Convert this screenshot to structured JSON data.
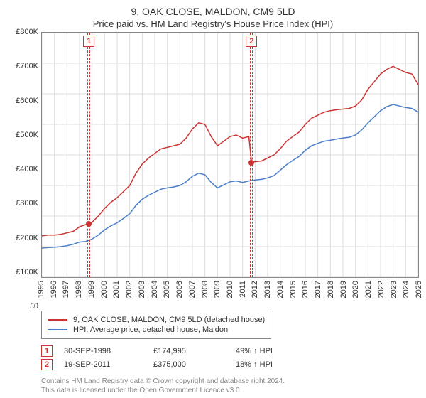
{
  "title": "9, OAK CLOSE, MALDON, CM9 5LD",
  "subtitle": "Price paid vs. HM Land Registry's House Price Index (HPI)",
  "chart": {
    "type": "line",
    "background_color": "#ffffff",
    "border_color": "#888888",
    "grid_color": "#dddddd",
    "text_color": "#333333",
    "label_fontsize": 11,
    "x": {
      "min": 1995,
      "max": 2025,
      "step": 1,
      "ticks": [
        1995,
        1996,
        1997,
        1998,
        1999,
        2000,
        2001,
        2002,
        2003,
        2004,
        2005,
        2006,
        2007,
        2008,
        2009,
        2010,
        2011,
        2012,
        2013,
        2014,
        2015,
        2016,
        2017,
        2018,
        2019,
        2020,
        2021,
        2022,
        2023,
        2024,
        2025
      ]
    },
    "y": {
      "min": 0,
      "max": 800000,
      "step": 100000,
      "ticks": [
        0,
        100000,
        200000,
        300000,
        400000,
        500000,
        600000,
        700000,
        800000
      ],
      "labels": [
        "£0",
        "£100K",
        "£200K",
        "£300K",
        "£400K",
        "£500K",
        "£600K",
        "£700K",
        "£800K"
      ]
    },
    "series": [
      {
        "id": "price_paid",
        "label": "9, OAK CLOSE, MALDON, CM9 5LD (detached house)",
        "color": "#cc3333",
        "line_width": 1.5,
        "points": [
          [
            1995.0,
            135000
          ],
          [
            1995.5,
            138000
          ],
          [
            1996.0,
            138000
          ],
          [
            1996.5,
            140000
          ],
          [
            1997.0,
            145000
          ],
          [
            1997.5,
            150000
          ],
          [
            1998.0,
            165000
          ],
          [
            1998.5,
            172000
          ],
          [
            1998.75,
            174995
          ],
          [
            1999.0,
            180000
          ],
          [
            1999.5,
            200000
          ],
          [
            2000.0,
            225000
          ],
          [
            2000.5,
            245000
          ],
          [
            2001.0,
            260000
          ],
          [
            2001.5,
            280000
          ],
          [
            2002.0,
            300000
          ],
          [
            2002.5,
            340000
          ],
          [
            2003.0,
            370000
          ],
          [
            2003.5,
            390000
          ],
          [
            2004.0,
            405000
          ],
          [
            2004.5,
            420000
          ],
          [
            2005.0,
            425000
          ],
          [
            2005.5,
            430000
          ],
          [
            2006.0,
            435000
          ],
          [
            2006.5,
            455000
          ],
          [
            2007.0,
            485000
          ],
          [
            2007.5,
            505000
          ],
          [
            2008.0,
            500000
          ],
          [
            2008.5,
            460000
          ],
          [
            2009.0,
            430000
          ],
          [
            2009.5,
            445000
          ],
          [
            2010.0,
            460000
          ],
          [
            2010.5,
            465000
          ],
          [
            2011.0,
            455000
          ],
          [
            2011.5,
            460000
          ],
          [
            2011.72,
            375000
          ],
          [
            2012.0,
            378000
          ],
          [
            2012.5,
            380000
          ],
          [
            2013.0,
            390000
          ],
          [
            2013.5,
            400000
          ],
          [
            2014.0,
            420000
          ],
          [
            2014.5,
            445000
          ],
          [
            2015.0,
            460000
          ],
          [
            2015.5,
            475000
          ],
          [
            2016.0,
            500000
          ],
          [
            2016.5,
            520000
          ],
          [
            2017.0,
            530000
          ],
          [
            2017.5,
            540000
          ],
          [
            2018.0,
            545000
          ],
          [
            2018.5,
            548000
          ],
          [
            2019.0,
            550000
          ],
          [
            2019.5,
            552000
          ],
          [
            2020.0,
            560000
          ],
          [
            2020.5,
            580000
          ],
          [
            2021.0,
            615000
          ],
          [
            2021.5,
            640000
          ],
          [
            2022.0,
            665000
          ],
          [
            2022.5,
            680000
          ],
          [
            2023.0,
            690000
          ],
          [
            2023.5,
            680000
          ],
          [
            2024.0,
            670000
          ],
          [
            2024.5,
            665000
          ],
          [
            2025.0,
            630000
          ]
        ]
      },
      {
        "id": "hpi",
        "label": "HPI: Average price, detached house, Maldon",
        "color": "#4a7ec8",
        "line_width": 1.5,
        "points": [
          [
            1995.0,
            95000
          ],
          [
            1995.5,
            97000
          ],
          [
            1996.0,
            98000
          ],
          [
            1996.5,
            100000
          ],
          [
            1997.0,
            103000
          ],
          [
            1997.5,
            108000
          ],
          [
            1998.0,
            115000
          ],
          [
            1998.5,
            117000
          ],
          [
            1999.0,
            125000
          ],
          [
            1999.5,
            138000
          ],
          [
            2000.0,
            155000
          ],
          [
            2000.5,
            168000
          ],
          [
            2001.0,
            178000
          ],
          [
            2001.5,
            192000
          ],
          [
            2002.0,
            208000
          ],
          [
            2002.5,
            235000
          ],
          [
            2003.0,
            255000
          ],
          [
            2003.5,
            268000
          ],
          [
            2004.0,
            278000
          ],
          [
            2004.5,
            288000
          ],
          [
            2005.0,
            292000
          ],
          [
            2005.5,
            295000
          ],
          [
            2006.0,
            300000
          ],
          [
            2006.5,
            312000
          ],
          [
            2007.0,
            330000
          ],
          [
            2007.5,
            340000
          ],
          [
            2008.0,
            335000
          ],
          [
            2008.5,
            310000
          ],
          [
            2009.0,
            292000
          ],
          [
            2009.5,
            302000
          ],
          [
            2010.0,
            312000
          ],
          [
            2010.5,
            315000
          ],
          [
            2011.0,
            310000
          ],
          [
            2011.5,
            315000
          ],
          [
            2012.0,
            318000
          ],
          [
            2012.5,
            320000
          ],
          [
            2013.0,
            325000
          ],
          [
            2013.5,
            332000
          ],
          [
            2014.0,
            350000
          ],
          [
            2014.5,
            368000
          ],
          [
            2015.0,
            382000
          ],
          [
            2015.5,
            395000
          ],
          [
            2016.0,
            415000
          ],
          [
            2016.5,
            430000
          ],
          [
            2017.0,
            438000
          ],
          [
            2017.5,
            445000
          ],
          [
            2018.0,
            448000
          ],
          [
            2018.5,
            452000
          ],
          [
            2019.0,
            455000
          ],
          [
            2019.5,
            458000
          ],
          [
            2020.0,
            465000
          ],
          [
            2020.5,
            482000
          ],
          [
            2021.0,
            505000
          ],
          [
            2021.5,
            525000
          ],
          [
            2022.0,
            545000
          ],
          [
            2022.5,
            558000
          ],
          [
            2023.0,
            565000
          ],
          [
            2023.5,
            560000
          ],
          [
            2024.0,
            555000
          ],
          [
            2024.5,
            552000
          ],
          [
            2025.0,
            540000
          ]
        ]
      }
    ],
    "markers": [
      {
        "id": 1,
        "x": 1998.75,
        "y": 174995,
        "label": "1"
      },
      {
        "id": 2,
        "x": 2011.72,
        "y": 375000,
        "label": "2"
      }
    ]
  },
  "legend": [
    {
      "color": "#cc3333",
      "text": "9, OAK CLOSE, MALDON, CM9 5LD (detached house)"
    },
    {
      "color": "#4a7ec8",
      "text": "HPI: Average price, detached house, Maldon"
    }
  ],
  "sales": [
    {
      "num": "1",
      "date": "30-SEP-1998",
      "price": "£174,995",
      "note": "49% ↑ HPI"
    },
    {
      "num": "2",
      "date": "19-SEP-2011",
      "price": "£375,000",
      "note": "18% ↑ HPI"
    }
  ],
  "footer_line1": "Contains HM Land Registry data © Crown copyright and database right 2024.",
  "footer_line2": "This data is licensed under the Open Government Licence v3.0."
}
